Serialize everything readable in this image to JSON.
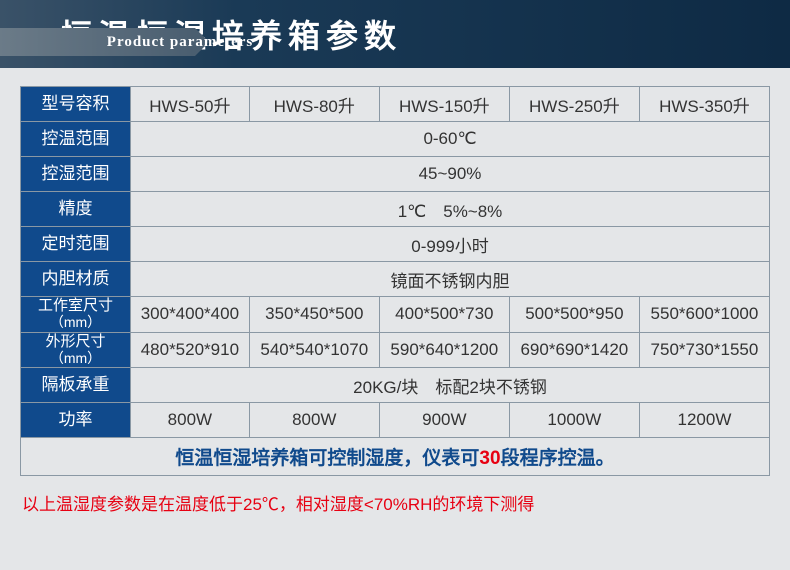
{
  "header": {
    "en": "Product parameters",
    "cn": "恒温恒湿培养箱参数"
  },
  "table": {
    "row_labels": {
      "model": "型号容积",
      "temp_range": "控温范围",
      "hum_range": "控湿范围",
      "precision": "精度",
      "timer": "定时范围",
      "liner": "内胆材质",
      "chamber": "工作室尺寸",
      "chamber_unit": "（mm）",
      "outer": "外形尺寸",
      "outer_unit": "（mm）",
      "shelf": "隔板承重",
      "power": "功率"
    },
    "models": [
      "HWS-50升",
      "HWS-80升",
      "HWS-150升",
      "HWS-250升",
      "HWS-350升"
    ],
    "temp_range": "0-60℃",
    "hum_range": "45~90%",
    "precision": "1℃　5%~8%",
    "timer": "0-999小时",
    "liner": "镜面不锈钢内胆",
    "chamber": [
      "300*400*400",
      "350*450*500",
      "400*500*730",
      "500*500*950",
      "550*600*1000"
    ],
    "outer": [
      "480*520*910",
      "540*540*1070",
      "590*640*1200",
      "690*690*1420",
      "750*730*1550"
    ],
    "shelf": "20KG/块　标配2块不锈钢",
    "power": [
      "800W",
      "800W",
      "900W",
      "1000W",
      "1200W"
    ],
    "note_pre": "恒温恒湿培养箱可控制湿度，仪表可",
    "note_hl": "30",
    "note_post": "段程序控温。"
  },
  "footnote": "以上温湿度参数是在温度低于25℃，相对湿度<70%RH的环境下测得",
  "style": {
    "header_bg_start": "#3a5268",
    "header_bg_end": "#0e2a44",
    "rowhead_bg": "#104a8c",
    "rowhead_color": "#ffffff",
    "body_bg": "#e4e6e8",
    "border_color": "#8a98a4",
    "cell_font_size": 17,
    "note_color": "#104a8c",
    "highlight_color": "#e70012",
    "footnote_color": "#e70012",
    "header_cn_fontsize": 32
  }
}
